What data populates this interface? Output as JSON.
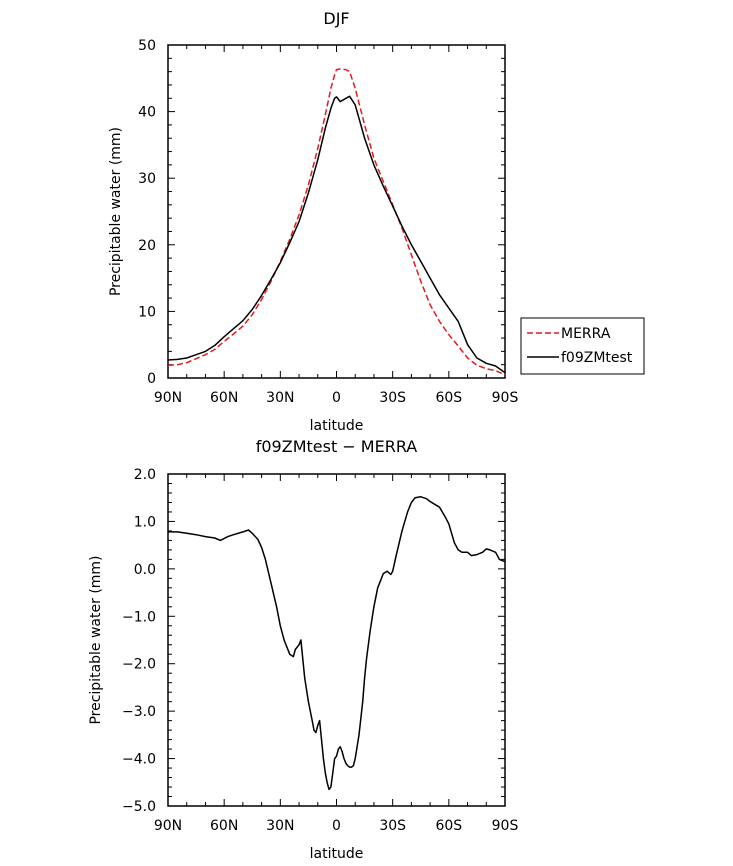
{
  "chart_data": [
    {
      "type": "line",
      "title": "DJF",
      "xlabel": "latitude",
      "ylabel": "Precipitable water (mm)",
      "xlim": [
        90,
        -90
      ],
      "ylim": [
        0,
        50
      ],
      "x_ticks": [
        90,
        60,
        30,
        0,
        -30,
        -60,
        -90
      ],
      "x_tick_labels": [
        "90N",
        "60N",
        "30N",
        "0",
        "30S",
        "60S",
        "90S"
      ],
      "y_ticks": [
        0,
        10,
        20,
        30,
        40,
        50
      ],
      "y_tick_labels": [
        "0",
        "10",
        "20",
        "30",
        "40",
        "50"
      ],
      "legend_position": "right",
      "series": [
        {
          "name": "MERRA",
          "color": "#e41a1c",
          "dash": "dashed",
          "x": [
            90,
            85,
            80,
            75,
            70,
            65,
            60,
            55,
            50,
            45,
            40,
            35,
            30,
            25,
            20,
            15,
            10,
            6,
            3,
            1,
            0,
            -2,
            -5,
            -7,
            -10,
            -15,
            -20,
            -25,
            -30,
            -35,
            -40,
            -45,
            -50,
            -55,
            -60,
            -65,
            -70,
            -75,
            -80,
            -85,
            -90
          ],
          "values": [
            1.9,
            2.0,
            2.3,
            2.9,
            3.5,
            4.3,
            5.5,
            6.6,
            7.8,
            9.5,
            11.8,
            14.5,
            17.5,
            20.8,
            24.5,
            29.0,
            34.5,
            39.5,
            43.5,
            45.5,
            46.3,
            46.4,
            46.3,
            46.0,
            43.5,
            38.0,
            33.0,
            29.5,
            26.0,
            22.5,
            18.5,
            14.5,
            11.0,
            8.5,
            6.5,
            4.8,
            3.0,
            1.9,
            1.4,
            1.1,
            0.5
          ]
        },
        {
          "name": "f09ZMtest",
          "color": "#000000",
          "dash": "solid",
          "x": [
            90,
            85,
            80,
            75,
            70,
            65,
            60,
            55,
            50,
            45,
            40,
            35,
            30,
            25,
            20,
            15,
            10,
            6,
            3,
            1,
            0,
            -2,
            -5,
            -7,
            -10,
            -15,
            -20,
            -25,
            -30,
            -35,
            -40,
            -45,
            -50,
            -55,
            -60,
            -65,
            -70,
            -75,
            -80,
            -85,
            -90
          ],
          "values": [
            2.7,
            2.8,
            3.0,
            3.5,
            4.0,
            4.9,
            6.2,
            7.4,
            8.6,
            10.3,
            12.4,
            14.8,
            17.3,
            20.3,
            23.5,
            27.8,
            32.8,
            37.5,
            40.5,
            42.0,
            42.2,
            41.5,
            42.0,
            42.3,
            41.0,
            36.0,
            32.0,
            28.8,
            25.8,
            22.8,
            20.0,
            17.5,
            15.0,
            12.5,
            10.5,
            8.5,
            5.0,
            3.0,
            2.2,
            1.8,
            0.8
          ]
        }
      ]
    },
    {
      "type": "line",
      "title": "f09ZMtest − MERRA",
      "xlabel": "latitude",
      "ylabel": "Precipitable water (mm)",
      "xlim": [
        90,
        -90
      ],
      "ylim": [
        -5,
        2
      ],
      "x_ticks": [
        90,
        60,
        30,
        0,
        -30,
        -60,
        -90
      ],
      "x_tick_labels": [
        "90N",
        "60N",
        "30N",
        "0",
        "30S",
        "60S",
        "90S"
      ],
      "y_ticks": [
        -5,
        -4,
        -3,
        -2,
        -1,
        0,
        1,
        2
      ],
      "y_tick_labels": [
        "−5.0",
        "−4.0",
        "−3.0",
        "−2.0",
        "−1.0",
        "0.0",
        "1.0",
        "2.0"
      ],
      "series": [
        {
          "color": "#000000",
          "dash": "solid",
          "x": [
            90,
            85,
            80,
            75,
            70,
            65,
            62,
            58,
            55,
            50,
            47,
            45,
            42,
            40,
            38,
            35,
            32,
            30,
            28,
            25,
            23,
            22,
            20,
            19,
            18,
            17,
            15,
            13,
            12,
            11,
            10,
            9,
            8,
            7,
            6,
            5,
            4,
            3,
            2,
            1,
            0,
            -1,
            -2,
            -3,
            -4,
            -5,
            -6,
            -7,
            -8,
            -9,
            -10,
            -12,
            -14,
            -15,
            -16,
            -18,
            -20,
            -22,
            -25,
            -27,
            -29,
            -30,
            -32,
            -35,
            -38,
            -40,
            -42,
            -45,
            -48,
            -50,
            -55,
            -58,
            -60,
            -63,
            -65,
            -67,
            -70,
            -72,
            -75,
            -78,
            -80,
            -82,
            -85,
            -87,
            -90
          ],
          "values": [
            0.78,
            0.78,
            0.75,
            0.72,
            0.68,
            0.65,
            0.6,
            0.68,
            0.72,
            0.78,
            0.82,
            0.75,
            0.62,
            0.45,
            0.2,
            -0.3,
            -0.8,
            -1.2,
            -1.5,
            -1.8,
            -1.85,
            -1.7,
            -1.6,
            -1.5,
            -1.9,
            -2.3,
            -2.8,
            -3.2,
            -3.4,
            -3.45,
            -3.3,
            -3.2,
            -3.6,
            -4.0,
            -4.3,
            -4.5,
            -4.65,
            -4.6,
            -4.3,
            -4.0,
            -3.95,
            -3.8,
            -3.75,
            -3.85,
            -4.0,
            -4.1,
            -4.15,
            -4.18,
            -4.18,
            -4.15,
            -4.0,
            -3.5,
            -2.8,
            -2.3,
            -1.9,
            -1.3,
            -0.8,
            -0.4,
            -0.1,
            -0.05,
            -0.12,
            -0.05,
            0.3,
            0.8,
            1.2,
            1.4,
            1.5,
            1.52,
            1.48,
            1.42,
            1.3,
            1.1,
            0.95,
            0.55,
            0.4,
            0.35,
            0.35,
            0.28,
            0.3,
            0.35,
            0.42,
            0.4,
            0.35,
            0.2,
            0.15
          ]
        }
      ]
    }
  ]
}
